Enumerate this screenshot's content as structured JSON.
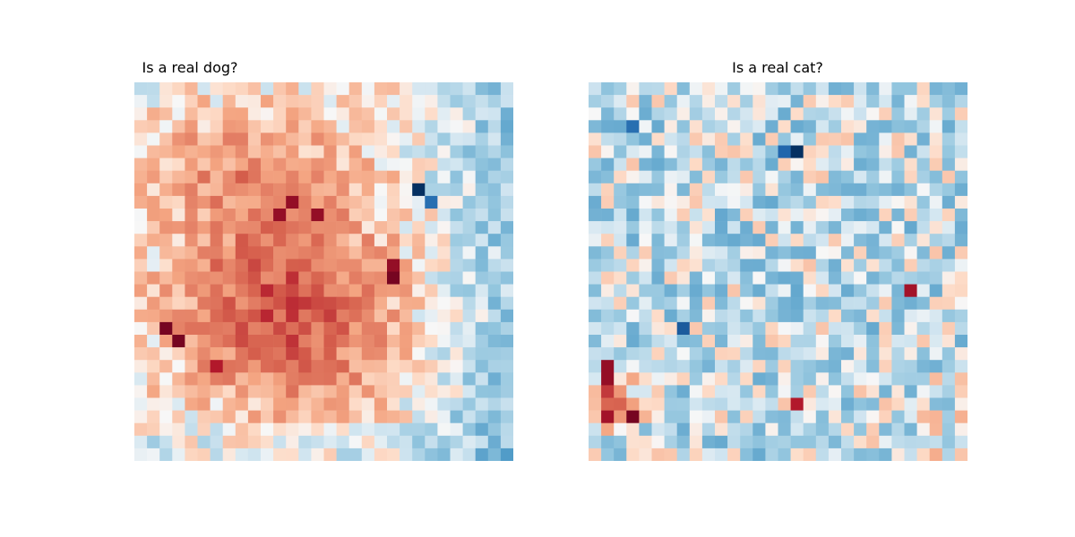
{
  "chart_data": [
    {
      "type": "heatmap",
      "title": "Is a real dog?",
      "rows": 30,
      "cols": 30,
      "colormap": "RdBu_r",
      "grid": false,
      "axes": "off",
      "value_range": [
        -1,
        1
      ],
      "pattern": "warm blob in center-left, cooler toward right edge, dark red cluster lower-left, a few dark blue cells upper-right",
      "hotspots": [
        {
          "row": 8,
          "col": 22,
          "value": -1.0
        },
        {
          "row": 9,
          "col": 23,
          "value": -0.7
        },
        {
          "row": 9,
          "col": 12,
          "value": 0.85
        },
        {
          "row": 10,
          "col": 11,
          "value": 0.85
        },
        {
          "row": 10,
          "col": 14,
          "value": 0.85
        },
        {
          "row": 14,
          "col": 20,
          "value": 0.85
        },
        {
          "row": 15,
          "col": 20,
          "value": 0.95
        },
        {
          "row": 19,
          "col": 2,
          "value": 0.95
        },
        {
          "row": 20,
          "col": 3,
          "value": 0.95
        },
        {
          "row": 22,
          "col": 6,
          "value": 0.75
        }
      ]
    },
    {
      "type": "heatmap",
      "title": "Is a real cat?",
      "rows": 30,
      "cols": 30,
      "colormap": "RdBu_r",
      "grid": false,
      "axes": "off",
      "value_range": [
        -1,
        1
      ],
      "pattern": "mostly light blue noise with scattered red cells; dark red cluster lower-left",
      "hotspots": [
        {
          "row": 5,
          "col": 16,
          "value": -1.0
        },
        {
          "row": 5,
          "col": 15,
          "value": -0.75
        },
        {
          "row": 3,
          "col": 3,
          "value": -0.7
        },
        {
          "row": 19,
          "col": 7,
          "value": -0.8
        },
        {
          "row": 22,
          "col": 1,
          "value": 0.85
        },
        {
          "row": 23,
          "col": 1,
          "value": 0.85
        },
        {
          "row": 26,
          "col": 3,
          "value": 0.95
        },
        {
          "row": 26,
          "col": 1,
          "value": 0.8
        },
        {
          "row": 16,
          "col": 25,
          "value": 0.8
        },
        {
          "row": 25,
          "col": 16,
          "value": 0.75
        }
      ]
    }
  ]
}
